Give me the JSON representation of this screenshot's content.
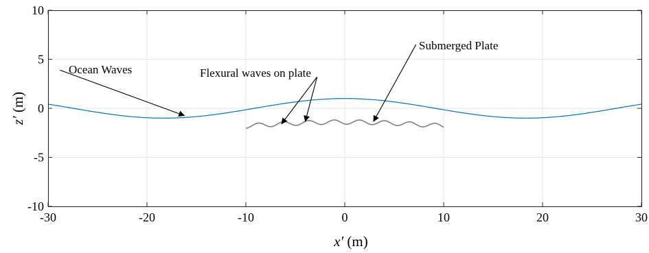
{
  "chart_data": {
    "type": "line",
    "xlabel_var": "x′",
    "xlabel_unit": "(m)",
    "ylabel_var": "z′",
    "ylabel_unit": "(m)",
    "xlim": [
      -30,
      30
    ],
    "ylim": [
      -10,
      10
    ],
    "xticks": [
      -30,
      -20,
      -10,
      0,
      10,
      20,
      30
    ],
    "yticks": [
      -10,
      -5,
      0,
      5,
      10
    ],
    "xtick_labels": [
      "-30",
      "-20",
      "-10",
      "0",
      "10",
      "20",
      "30"
    ],
    "ytick_labels": [
      "-10",
      "-5",
      "0",
      "5",
      "10"
    ],
    "grid": true,
    "series": [
      {
        "kind": "ocean-waves",
        "color": "#0072bd",
        "amplitude": 1.0,
        "wavelength": 36.6,
        "x_range": [
          -30,
          30
        ]
      },
      {
        "kind": "submerged-plate",
        "color": "#7f7f7f",
        "mean_depth": -1.75,
        "x_range": [
          -10,
          10
        ],
        "ripple_wavelength": 2.55,
        "ripple_amplitude": 0.22
      }
    ],
    "annotations": [
      {
        "text": "Ocean Waves",
        "tail": [
          -28.8,
          3.9
        ],
        "heads": [
          [
            -16.2,
            -0.75
          ]
        ]
      },
      {
        "text": "Flexural waves on plate",
        "tail": [
          -2.8,
          3.2
        ],
        "heads": [
          [
            -6.4,
            -1.6
          ],
          [
            -4.0,
            -1.35
          ]
        ]
      },
      {
        "text": "Submerged Plate",
        "tail": [
          7.2,
          6.5
        ],
        "heads": [
          [
            2.9,
            -1.35
          ]
        ]
      }
    ]
  }
}
